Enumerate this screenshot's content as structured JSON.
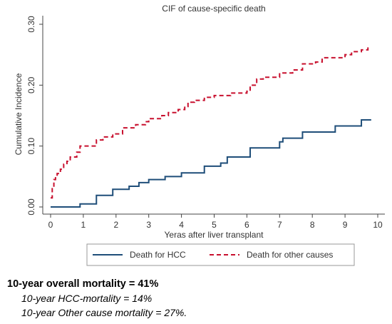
{
  "chart_data": {
    "type": "line",
    "title": "CIF of cause-specific death",
    "xlabel": "Yeras after liver transplant",
    "ylabel": "Cumulative Incidence",
    "xlim": [
      0,
      10
    ],
    "ylim": [
      0,
      0.3
    ],
    "x_ticks": [
      "0",
      "1",
      "2",
      "3",
      "4",
      "5",
      "6",
      "7",
      "8",
      "9",
      "10"
    ],
    "y_ticks": [
      "0.00",
      "0.10",
      "0.20",
      "0.30"
    ],
    "grid": false,
    "legend_position": "bottom",
    "series": [
      {
        "name": "Death for HCC",
        "color": "#1f4e79",
        "style": "solid",
        "x": [
          0,
          0.9,
          1.4,
          1.9,
          2.4,
          2.7,
          3.0,
          3.5,
          4.0,
          4.7,
          5.2,
          5.4,
          6.1,
          7.0,
          7.1,
          7.7,
          8.7,
          9.5,
          9.8
        ],
        "y": [
          0,
          0.005,
          0.019,
          0.029,
          0.034,
          0.04,
          0.045,
          0.05,
          0.056,
          0.067,
          0.072,
          0.082,
          0.097,
          0.107,
          0.113,
          0.123,
          0.133,
          0.143,
          0.143
        ]
      },
      {
        "name": "Death for other causes",
        "color": "#c8102e",
        "style": "dashed",
        "x": [
          0,
          0.05,
          0.1,
          0.15,
          0.2,
          0.3,
          0.4,
          0.5,
          0.6,
          0.8,
          0.9,
          1.4,
          1.6,
          1.9,
          2.2,
          2.6,
          2.9,
          3.0,
          3.4,
          3.6,
          3.9,
          4.1,
          4.2,
          4.4,
          4.7,
          5.0,
          5.5,
          6.0,
          6.1,
          6.3,
          6.5,
          7.0,
          7.4,
          7.7,
          8.1,
          8.3,
          9.0,
          9.2,
          9.5,
          9.7
        ],
        "y": [
          0.015,
          0.03,
          0.045,
          0.05,
          0.055,
          0.062,
          0.07,
          0.075,
          0.082,
          0.09,
          0.1,
          0.11,
          0.115,
          0.12,
          0.13,
          0.135,
          0.14,
          0.145,
          0.15,
          0.155,
          0.16,
          0.165,
          0.172,
          0.175,
          0.18,
          0.183,
          0.187,
          0.19,
          0.2,
          0.21,
          0.213,
          0.22,
          0.225,
          0.235,
          0.238,
          0.245,
          0.25,
          0.255,
          0.258,
          0.265
        ]
      }
    ]
  },
  "summary": {
    "overall": "10-year overall mortality = 41%",
    "hcc": "10-year HCC-mortality = 14%",
    "other": "10-year Other cause mortality = 27%."
  }
}
